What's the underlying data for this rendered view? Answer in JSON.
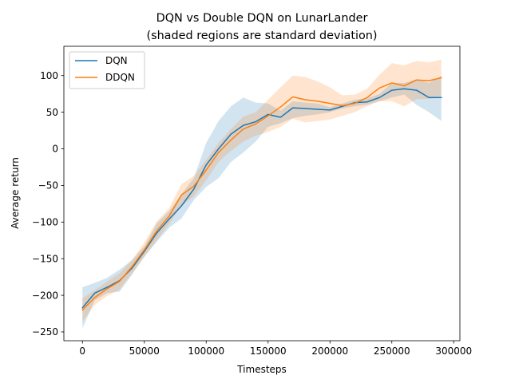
{
  "chart_data": {
    "type": "line",
    "title": "DQN vs Double DQN on LunarLander",
    "subtitle": "(shaded regions are standard deviation)",
    "xlabel": "Timesteps",
    "ylabel": "Average return",
    "xlim": [
      -15000,
      305000
    ],
    "ylim": [
      -262,
      140
    ],
    "xticks": [
      0,
      50000,
      100000,
      150000,
      200000,
      250000,
      300000
    ],
    "yticks": [
      -250,
      -200,
      -150,
      -100,
      -50,
      0,
      50,
      100
    ],
    "grid": false,
    "legend_position": "top-left",
    "x": [
      0,
      10000,
      20000,
      30000,
      40000,
      50000,
      60000,
      70000,
      80000,
      90000,
      100000,
      110000,
      120000,
      130000,
      140000,
      150000,
      160000,
      170000,
      180000,
      190000,
      200000,
      210000,
      220000,
      230000,
      240000,
      250000,
      260000,
      270000,
      280000,
      290000
    ],
    "series": [
      {
        "name": "DQN",
        "color": "#1f77b4",
        "values": [
          -217,
          -197,
          -189,
          -180,
          -163,
          -140,
          -115,
          -96,
          -78,
          -55,
          -22,
          0,
          20,
          32,
          37,
          47,
          43,
          56,
          55,
          54,
          53,
          58,
          63,
          64,
          70,
          80,
          82,
          80,
          70,
          70
        ],
        "lower": [
          -245,
          -207,
          -197,
          -195,
          -172,
          -147,
          -127,
          -108,
          -95,
          -70,
          -52,
          -40,
          -18,
          -5,
          10,
          30,
          35,
          42,
          45,
          47,
          50,
          55,
          58,
          60,
          65,
          70,
          74,
          60,
          50,
          38
        ],
        "upper": [
          -189,
          -183,
          -176,
          -165,
          -152,
          -133,
          -102,
          -85,
          -62,
          -40,
          8,
          38,
          58,
          70,
          63,
          62,
          52,
          65,
          63,
          62,
          57,
          62,
          67,
          69,
          75,
          90,
          90,
          95,
          90,
          100
        ]
      },
      {
        "name": "DDQN",
        "color": "#ff7f0e",
        "values": [
          -220,
          -203,
          -191,
          -181,
          -161,
          -138,
          -112,
          -92,
          -63,
          -51,
          -29,
          -5,
          12,
          27,
          34,
          45,
          57,
          71,
          67,
          65,
          62,
          59,
          62,
          70,
          83,
          90,
          86,
          94,
          93,
          97
        ],
        "lower": [
          -236,
          -213,
          -201,
          -192,
          -170,
          -148,
          -125,
          -103,
          -78,
          -65,
          -43,
          -18,
          -3,
          10,
          18,
          23,
          30,
          41,
          36,
          38,
          40,
          45,
          50,
          58,
          65,
          65,
          58,
          68,
          68,
          72
        ],
        "upper": [
          -204,
          -193,
          -181,
          -170,
          -152,
          -128,
          -99,
          -81,
          -48,
          -37,
          -15,
          8,
          27,
          44,
          50,
          67,
          84,
          100,
          98,
          92,
          84,
          73,
          74,
          82,
          101,
          117,
          114,
          120,
          118,
          122
        ]
      }
    ]
  }
}
